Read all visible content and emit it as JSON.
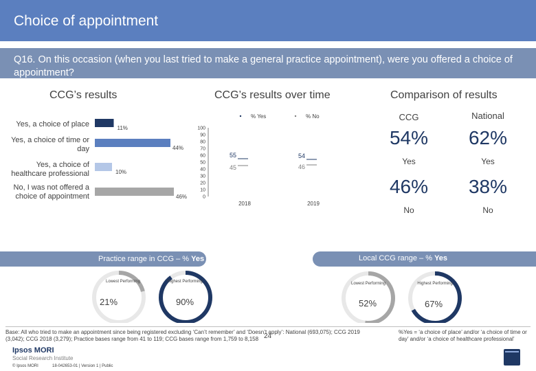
{
  "header": {
    "title": "Choice of appointment"
  },
  "question": "Q16. On this occasion (when you last tried to make a general practice appointment), were you offered a choice of appointment?",
  "sections": {
    "ccg_results": "CCG’s results",
    "over_time": "CCG’s results over time",
    "comparison": "Comparison of results"
  },
  "chart_data": [
    {
      "type": "bar",
      "orientation": "horizontal",
      "title": "CCG’s results",
      "categories": [
        "Yes, a choice of place",
        "Yes, a choice of time or day",
        "Yes, a choice of healthcare professional",
        "No, I was not offered a choice of appointment"
      ],
      "values": [
        11,
        44,
        10,
        46
      ],
      "value_labels": [
        "11%",
        "44%",
        "10%",
        "46%"
      ],
      "colors": [
        "#1f3864",
        "#5b7fbf",
        "#b4c7e7",
        "#a6a6a6"
      ],
      "xlim": [
        0,
        100
      ]
    },
    {
      "type": "line",
      "title": "CCG’s results over time",
      "x": [
        "2018",
        "2019"
      ],
      "series": [
        {
          "name": "% Yes",
          "values": [
            55,
            54
          ],
          "color": "#1f3864"
        },
        {
          "name": "% No",
          "values": [
            45,
            46
          ],
          "color": "#7f7f7f"
        }
      ],
      "ylim": [
        0,
        100
      ],
      "yticks": [
        "0",
        "10",
        "20",
        "30",
        "40",
        "50",
        "60",
        "70",
        "80",
        "90",
        "100"
      ]
    }
  ],
  "comparison": {
    "col_ccg": "CCG",
    "col_national": "National",
    "yes_ccg": "54%",
    "yes_national": "62%",
    "yes_label": "Yes",
    "no_ccg": "46%",
    "no_national": "38%",
    "no_label": "No"
  },
  "practice_range": {
    "title_prefix": "Practice range in CCG – % ",
    "title_yes": "Yes",
    "lowest_label": "Lowest Performing",
    "highest_label": "Highest Performing",
    "lowest_value": "21%",
    "highest_value": "90%",
    "lowest_fraction": 0.21,
    "highest_fraction": 0.9
  },
  "local_range": {
    "title_prefix": "Local CCG range – % ",
    "title_yes": "Yes",
    "lowest_label": "Lowest Performing",
    "highest_label": "Highest Performing",
    "lowest_value": "52%",
    "highest_value": "67%",
    "lowest_fraction": 0.52,
    "highest_fraction": 0.67
  },
  "colors": {
    "header": "#5b7fbf",
    "dark_navy": "#1f3864",
    "mid_blue": "#5b7fbf",
    "light_blue": "#b4c7e7",
    "grey": "#a6a6a6"
  },
  "footer": {
    "base": "Base: All who tried to make an appointment since being registered excluding ‘Can’t remember’ and ‘Doesn’t apply’: National (693,075); CCG 2019 (3,042); CCG 2018 (3,279); Practice bases range from 41 to 119; CCG bases range from 1,759 to 8,158",
    "note": "%Yes = ‘a choice of place’ and/or ‘a choice of time or day’ and/or ‘a choice of healthcare professional’",
    "page": "24",
    "logo_line1": "Ipsos MORI",
    "logo_line2": "Social Research Institute",
    "copyright": "© Ipsos MORI",
    "version": "18-042653-01 | Version 1 | Public"
  }
}
